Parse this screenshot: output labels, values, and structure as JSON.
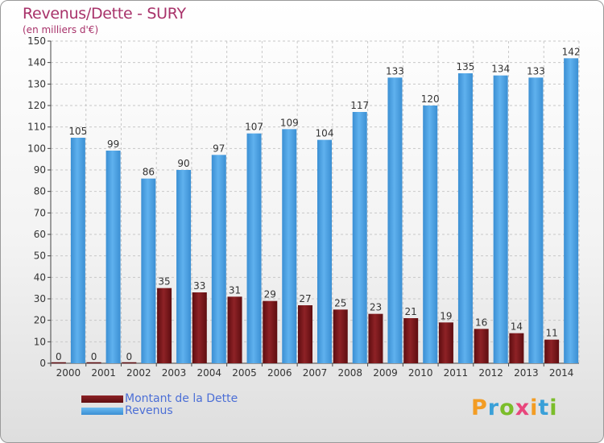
{
  "title": "Revenus/Dette - SURY",
  "subtitle": "(en milliers d'€)",
  "logo_text": "Proxiti",
  "colors": {
    "revenus": "#4a9fe0",
    "dette": "#7a1416",
    "label_text": "#333333",
    "title": "#a8326a",
    "legend_text": "#4c6fd6"
  },
  "chart_data": {
    "type": "bar",
    "title": "Revenus/Dette - SURY",
    "subtitle": "(en milliers d'€)",
    "categories": [
      "2000",
      "2001",
      "2002",
      "2003",
      "2004",
      "2005",
      "2006",
      "2007",
      "2008",
      "2009",
      "2010",
      "2011",
      "2012",
      "2013",
      "2014"
    ],
    "series": [
      {
        "name": "Montant de la Dette",
        "values": [
          0,
          0,
          0,
          35,
          33,
          31,
          29,
          27,
          25,
          23,
          21,
          19,
          16,
          14,
          11
        ]
      },
      {
        "name": "Revenus",
        "values": [
          105,
          99,
          86,
          90,
          97,
          107,
          109,
          104,
          117,
          133,
          120,
          135,
          134,
          133,
          142
        ]
      }
    ],
    "ylim": [
      0,
      150
    ],
    "yticks": [
      0,
      10,
      20,
      30,
      40,
      50,
      60,
      70,
      80,
      90,
      100,
      110,
      120,
      130,
      140,
      150
    ],
    "grid": true,
    "legend_position": "bottom-left"
  },
  "legend": [
    {
      "label": "Montant de la Dette",
      "color": "#7a1416"
    },
    {
      "label": "Revenus",
      "color": "#4a9fe0"
    }
  ]
}
